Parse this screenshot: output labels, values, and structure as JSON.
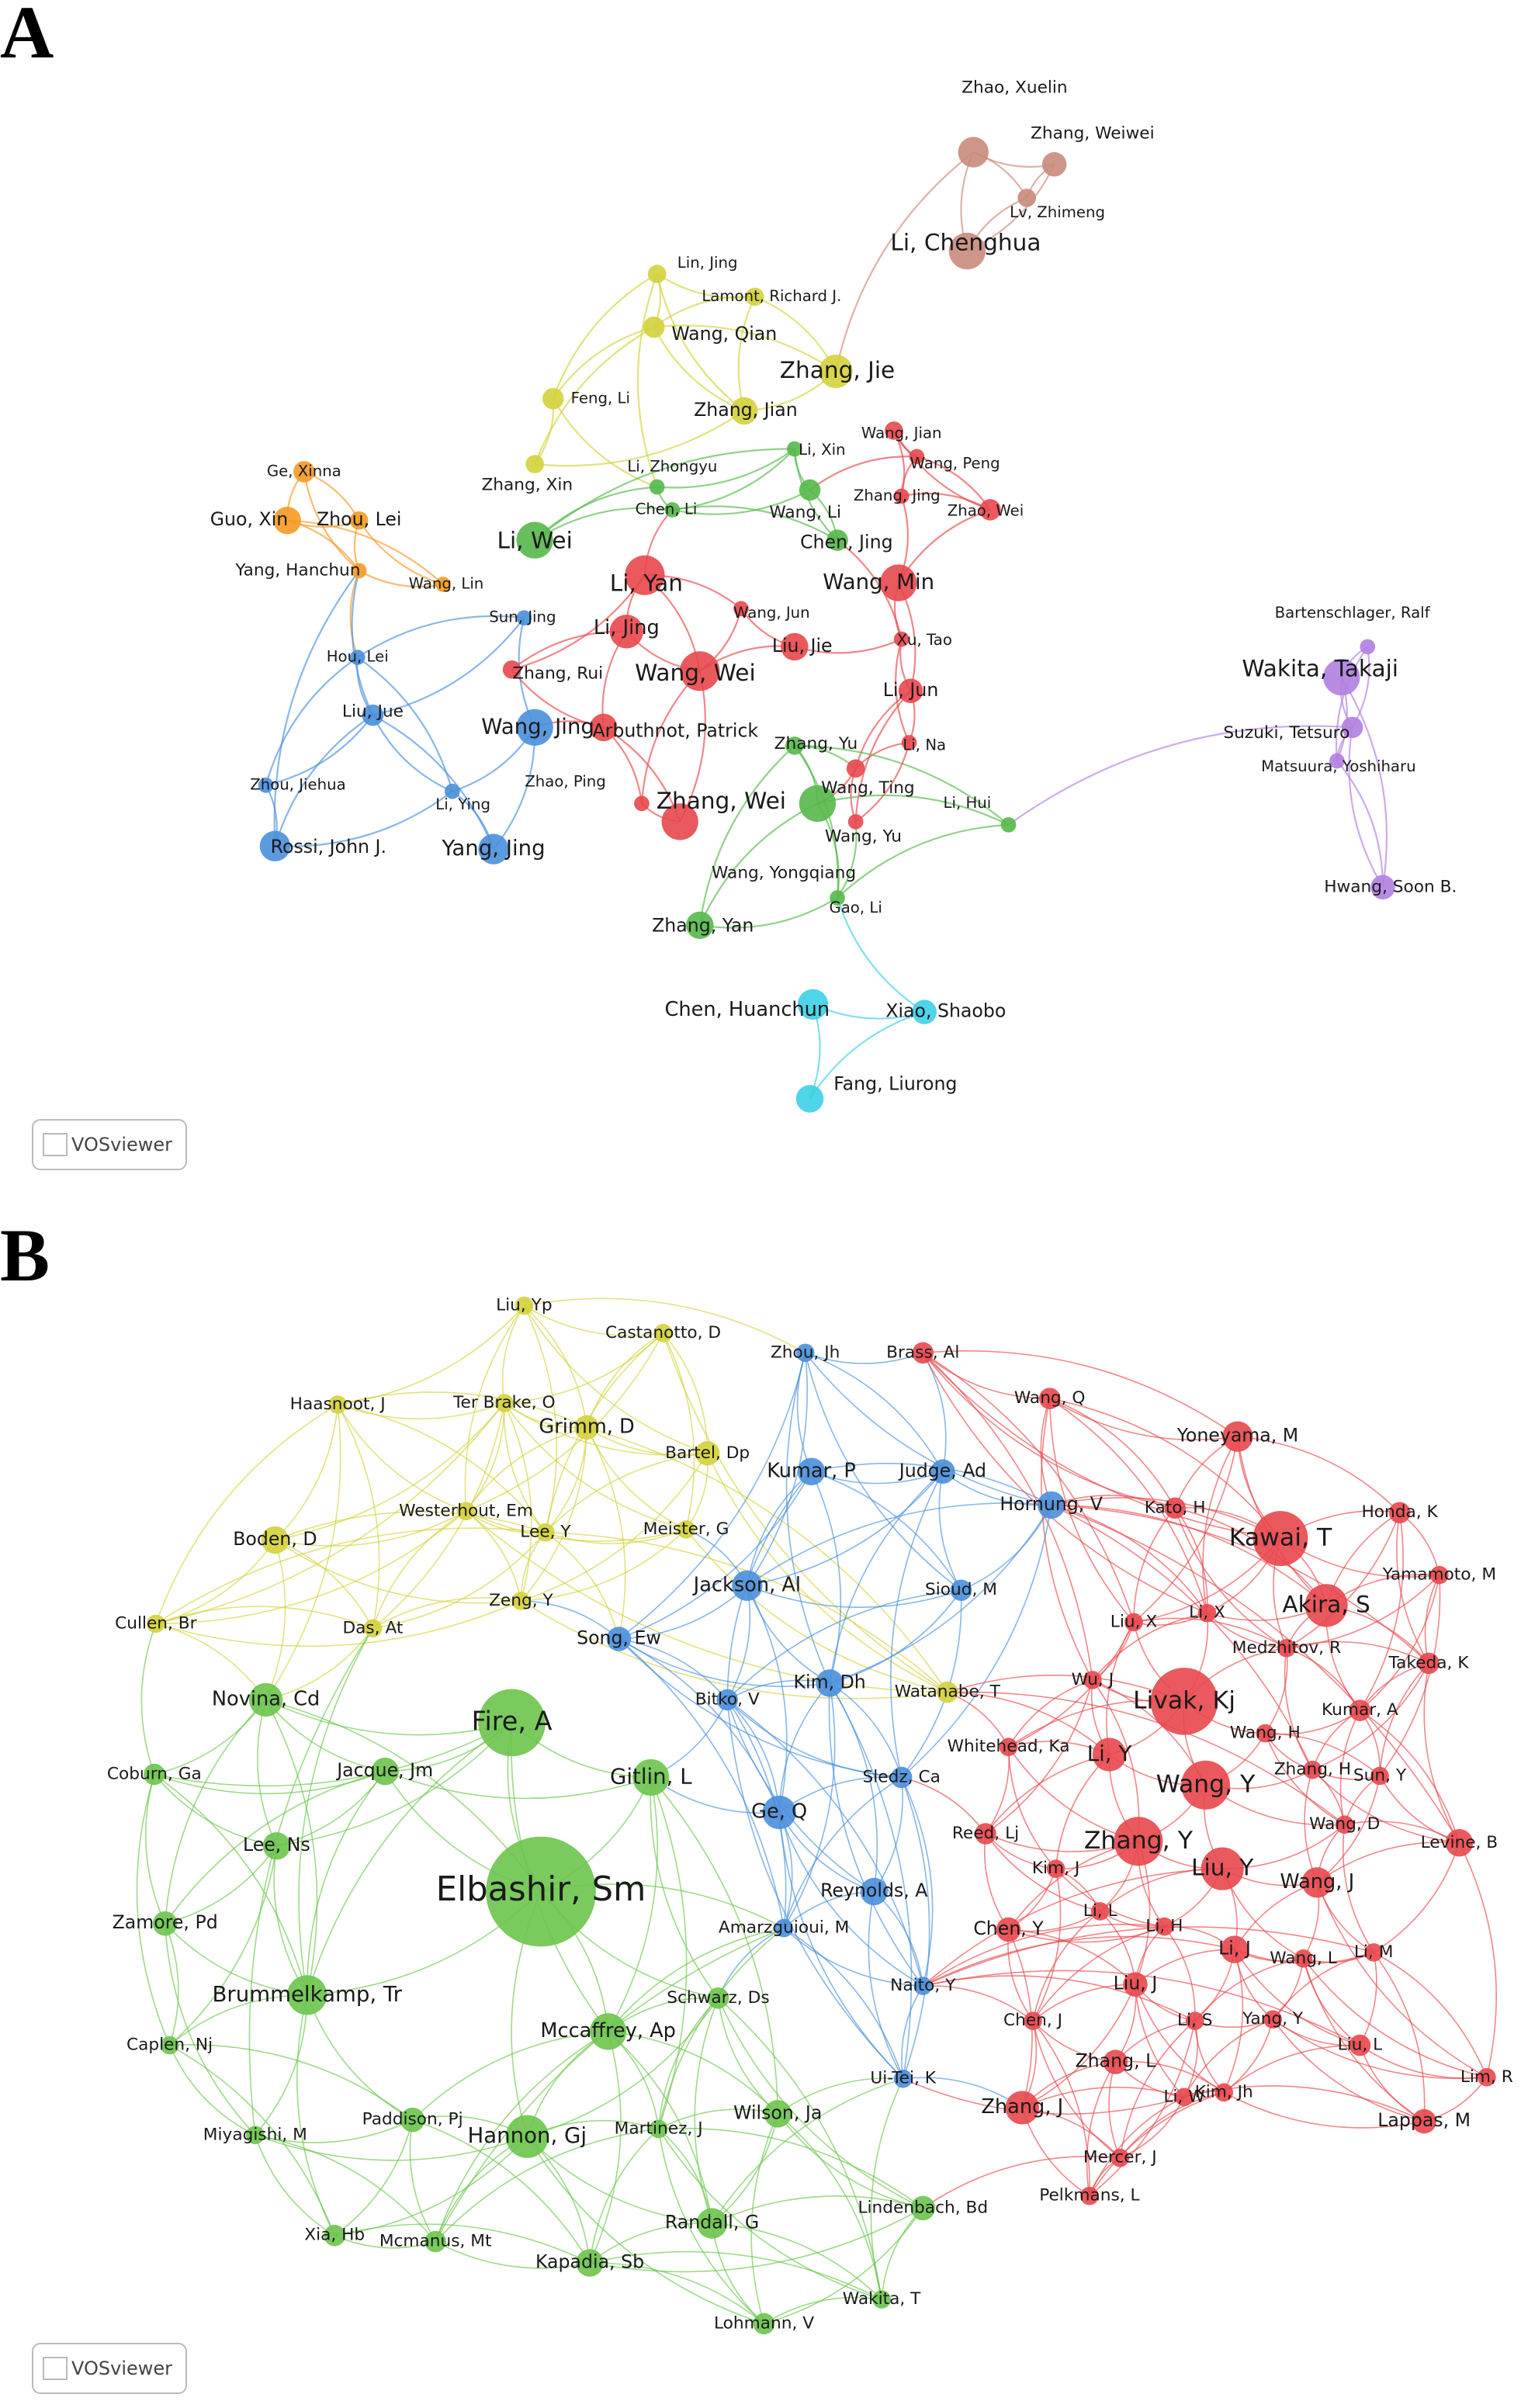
{
  "panels": [
    {
      "label": "A",
      "watermark": "VOSviewer",
      "clusters": [
        "#e8474c",
        "#55b84a",
        "#4a8fdc",
        "#d4d23c",
        "#b07fe0",
        "#3dcfe6",
        "#f59a23",
        "#c88b7c"
      ],
      "nodes": [
        {
          "label": "Zhao, Xuelin",
          "cluster": 7
        },
        {
          "label": "Zhang, Weiwei",
          "cluster": 7
        },
        {
          "label": "Lv, Zhimeng",
          "cluster": 7
        },
        {
          "label": "Li, Chenghua",
          "cluster": 7
        },
        {
          "label": "Lin, Jing",
          "cluster": 3
        },
        {
          "label": "Lamont, Richard J.",
          "cluster": 3
        },
        {
          "label": "Wang, Qian",
          "cluster": 3
        },
        {
          "label": "Zhang, Jie",
          "cluster": 3
        },
        {
          "label": "Feng, Li",
          "cluster": 3
        },
        {
          "label": "Zhang, Jian",
          "cluster": 3
        },
        {
          "label": "Zhang, Xin",
          "cluster": 3
        },
        {
          "label": "Wang, Jian",
          "cluster": 0
        },
        {
          "label": "Wang, Peng",
          "cluster": 0
        },
        {
          "label": "Zhang, Jing",
          "cluster": 0
        },
        {
          "label": "Zhao, Wei",
          "cluster": 0
        },
        {
          "label": "Wang, Min",
          "cluster": 0
        },
        {
          "label": "Li, Yan",
          "cluster": 0
        },
        {
          "label": "Li, Jing",
          "cluster": 0
        },
        {
          "label": "Wang, Jun",
          "cluster": 0
        },
        {
          "label": "Liu, Jie",
          "cluster": 0
        },
        {
          "label": "Xu, Tao",
          "cluster": 0
        },
        {
          "label": "Zhang, Rui",
          "cluster": 0
        },
        {
          "label": "Wang, Wei",
          "cluster": 0
        },
        {
          "label": "Li, Jun",
          "cluster": 0
        },
        {
          "label": "Arbuthnot, Patrick",
          "cluster": 0
        },
        {
          "label": "Li, Na",
          "cluster": 0
        },
        {
          "label": "Zhao, Ping",
          "cluster": 0
        },
        {
          "label": "Zhang, Wei",
          "cluster": 0
        },
        {
          "label": "Wang, Ting",
          "cluster": 0
        },
        {
          "label": "Wang, Yu",
          "cluster": 0
        },
        {
          "label": "Li, Xin",
          "cluster": 1
        },
        {
          "label": "Li, Zhongyu",
          "cluster": 1
        },
        {
          "label": "Chen, Li",
          "cluster": 1
        },
        {
          "label": "Wang, Li",
          "cluster": 1
        },
        {
          "label": "Li, Wei",
          "cluster": 1
        },
        {
          "label": "Chen, Jing",
          "cluster": 1
        },
        {
          "label": "Zhang, Yu",
          "cluster": 1
        },
        {
          "label": "Li, Hui",
          "cluster": 1
        },
        {
          "label": "Wang, Yongqiang",
          "cluster": 1
        },
        {
          "label": "Zhang, Yan",
          "cluster": 1
        },
        {
          "label": "Gao, Li",
          "cluster": 1
        },
        {
          "label": "Ge, Xinna",
          "cluster": 6
        },
        {
          "label": "Guo, Xin",
          "cluster": 6
        },
        {
          "label": "Zhou, Lei",
          "cluster": 6
        },
        {
          "label": "Yang, Hanchun",
          "cluster": 6
        },
        {
          "label": "Wang, Lin",
          "cluster": 6
        },
        {
          "label": "Sun, Jing",
          "cluster": 2
        },
        {
          "label": "Hou, Lei",
          "cluster": 2
        },
        {
          "label": "Liu, Jue",
          "cluster": 2
        },
        {
          "label": "Wang, Jing",
          "cluster": 2
        },
        {
          "label": "Zhou, Jiehua",
          "cluster": 2
        },
        {
          "label": "Li, Ying",
          "cluster": 2
        },
        {
          "label": "Rossi, John J.",
          "cluster": 2
        },
        {
          "label": "Yang, Jing",
          "cluster": 2
        },
        {
          "label": "Bartenschlager, Ralf",
          "cluster": 4
        },
        {
          "label": "Wakita, Takaji",
          "cluster": 4
        },
        {
          "label": "Suzuki, Tetsuro",
          "cluster": 4
        },
        {
          "label": "Matsuura, Yoshiharu",
          "cluster": 4
        },
        {
          "label": "Hwang, Soon B.",
          "cluster": 4
        },
        {
          "label": "Chen, Huanchun",
          "cluster": 5
        },
        {
          "label": "Xiao, Shaobo",
          "cluster": 5
        },
        {
          "label": "Fang, Liurong",
          "cluster": 5
        }
      ]
    },
    {
      "label": "B",
      "watermark": "VOSviewer",
      "clusters": [
        "#e8474c",
        "#6cc44c",
        "#4a8fdc",
        "#d4d23c"
      ],
      "nodes": [
        {
          "label": "Liu, Yp",
          "cluster": 3
        },
        {
          "label": "Castanotto, D",
          "cluster": 3
        },
        {
          "label": "Haasnoot, J",
          "cluster": 3
        },
        {
          "label": "Ter Brake, O",
          "cluster": 3
        },
        {
          "label": "Grimm, D",
          "cluster": 3
        },
        {
          "label": "Bartel, Dp",
          "cluster": 3
        },
        {
          "label": "Boden, D",
          "cluster": 3
        },
        {
          "label": "Westerhout, Em",
          "cluster": 3
        },
        {
          "label": "Lee, Y",
          "cluster": 3
        },
        {
          "label": "Meister, G",
          "cluster": 3
        },
        {
          "label": "Cullen, Br",
          "cluster": 3
        },
        {
          "label": "Zeng, Y",
          "cluster": 3
        },
        {
          "label": "Das, At",
          "cluster": 3
        },
        {
          "label": "Watanabe, T",
          "cluster": 3
        },
        {
          "label": "Zhou, Jh",
          "cluster": 2
        },
        {
          "label": "Kumar, P",
          "cluster": 2
        },
        {
          "label": "Judge, Ad",
          "cluster": 2
        },
        {
          "label": "Hornung, V",
          "cluster": 2
        },
        {
          "label": "Jackson, Al",
          "cluster": 2
        },
        {
          "label": "Sioud, M",
          "cluster": 2
        },
        {
          "label": "Song, Ew",
          "cluster": 2
        },
        {
          "label": "Kim, Dh",
          "cluster": 2
        },
        {
          "label": "Bitko, V",
          "cluster": 2
        },
        {
          "label": "Sledz, Ca",
          "cluster": 2
        },
        {
          "label": "Ge, Q",
          "cluster": 2
        },
        {
          "label": "Reynolds, A",
          "cluster": 2
        },
        {
          "label": "Amarzguioui, M",
          "cluster": 2
        },
        {
          "label": "Naito, Y",
          "cluster": 2
        },
        {
          "label": "Ui-Tei, K",
          "cluster": 2
        },
        {
          "label": "Brass, Al",
          "cluster": 0
        },
        {
          "label": "Wang, Q",
          "cluster": 0
        },
        {
          "label": "Yoneyama, M",
          "cluster": 0
        },
        {
          "label": "Kato, H",
          "cluster": 0
        },
        {
          "label": "Honda, K",
          "cluster": 0
        },
        {
          "label": "Kawai, T",
          "cluster": 0
        },
        {
          "label": "Yamamoto, M",
          "cluster": 0
        },
        {
          "label": "Akira, S",
          "cluster": 0
        },
        {
          "label": "Liu, X",
          "cluster": 0
        },
        {
          "label": "Li, X",
          "cluster": 0
        },
        {
          "label": "Medzhitov, R",
          "cluster": 0
        },
        {
          "label": "Takeda, K",
          "cluster": 0
        },
        {
          "label": "Wu, J",
          "cluster": 0
        },
        {
          "label": "Livak, Kj",
          "cluster": 0
        },
        {
          "label": "Kumar, A",
          "cluster": 0
        },
        {
          "label": "Whitehead, Ka",
          "cluster": 0
        },
        {
          "label": "Wang, H",
          "cluster": 0
        },
        {
          "label": "Li, Y",
          "cluster": 0
        },
        {
          "label": "Wang, Y",
          "cluster": 0
        },
        {
          "label": "Zhang, H",
          "cluster": 0
        },
        {
          "label": "Sun, Y",
          "cluster": 0
        },
        {
          "label": "Reed, Lj",
          "cluster": 0
        },
        {
          "label": "Zhang, Y",
          "cluster": 0
        },
        {
          "label": "Wang, D",
          "cluster": 0
        },
        {
          "label": "Kim, J",
          "cluster": 0
        },
        {
          "label": "Liu, Y",
          "cluster": 0
        },
        {
          "label": "Wang, J",
          "cluster": 0
        },
        {
          "label": "Levine, B",
          "cluster": 0
        },
        {
          "label": "Li, L",
          "cluster": 0
        },
        {
          "label": "Li, H",
          "cluster": 0
        },
        {
          "label": "Chen, Y",
          "cluster": 0
        },
        {
          "label": "Li, J",
          "cluster": 0
        },
        {
          "label": "Wang, L",
          "cluster": 0
        },
        {
          "label": "Li, M",
          "cluster": 0
        },
        {
          "label": "Liu, J",
          "cluster": 0
        },
        {
          "label": "Li, S",
          "cluster": 0
        },
        {
          "label": "Yang, Y",
          "cluster": 0
        },
        {
          "label": "Chen, J",
          "cluster": 0
        },
        {
          "label": "Zhang, L",
          "cluster": 0
        },
        {
          "label": "Liu, L",
          "cluster": 0
        },
        {
          "label": "Lim, R",
          "cluster": 0
        },
        {
          "label": "Zhang, J",
          "cluster": 0
        },
        {
          "label": "Kim, Jh",
          "cluster": 0
        },
        {
          "label": "Li, W",
          "cluster": 0
        },
        {
          "label": "Lappas, M",
          "cluster": 0
        },
        {
          "label": "Mercer, J",
          "cluster": 0
        },
        {
          "label": "Pelkmans, L",
          "cluster": 0
        },
        {
          "label": "Novina, Cd",
          "cluster": 1
        },
        {
          "label": "Fire, A",
          "cluster": 1
        },
        {
          "label": "Coburn, Ga",
          "cluster": 1
        },
        {
          "label": "Jacque, Jm",
          "cluster": 1
        },
        {
          "label": "Gitlin, L",
          "cluster": 1
        },
        {
          "label": "Lee, Ns",
          "cluster": 1
        },
        {
          "label": "Elbashir, Sm",
          "cluster": 1
        },
        {
          "label": "Zamore, Pd",
          "cluster": 1
        },
        {
          "label": "Brummelkamp, Tr",
          "cluster": 1
        },
        {
          "label": "Schwarz, Ds",
          "cluster": 1
        },
        {
          "label": "Mccaffrey, Ap",
          "cluster": 1
        },
        {
          "label": "Caplen, Nj",
          "cluster": 1
        },
        {
          "label": "Miyagishi, M",
          "cluster": 1
        },
        {
          "label": "Paddison, Pj",
          "cluster": 1
        },
        {
          "label": "Martinez, J",
          "cluster": 1
        },
        {
          "label": "Hannon, Gj",
          "cluster": 1
        },
        {
          "label": "Wilson, Ja",
          "cluster": 1
        },
        {
          "label": "Lindenbach, Bd",
          "cluster": 1
        },
        {
          "label": "Randall, G",
          "cluster": 1
        },
        {
          "label": "Xia, Hb",
          "cluster": 1
        },
        {
          "label": "Mcmanus, Mt",
          "cluster": 1
        },
        {
          "label": "Kapadia, Sb",
          "cluster": 1
        },
        {
          "label": "Wakita, T",
          "cluster": 1
        },
        {
          "label": "Lohmann, V",
          "cluster": 1
        }
      ]
    }
  ]
}
